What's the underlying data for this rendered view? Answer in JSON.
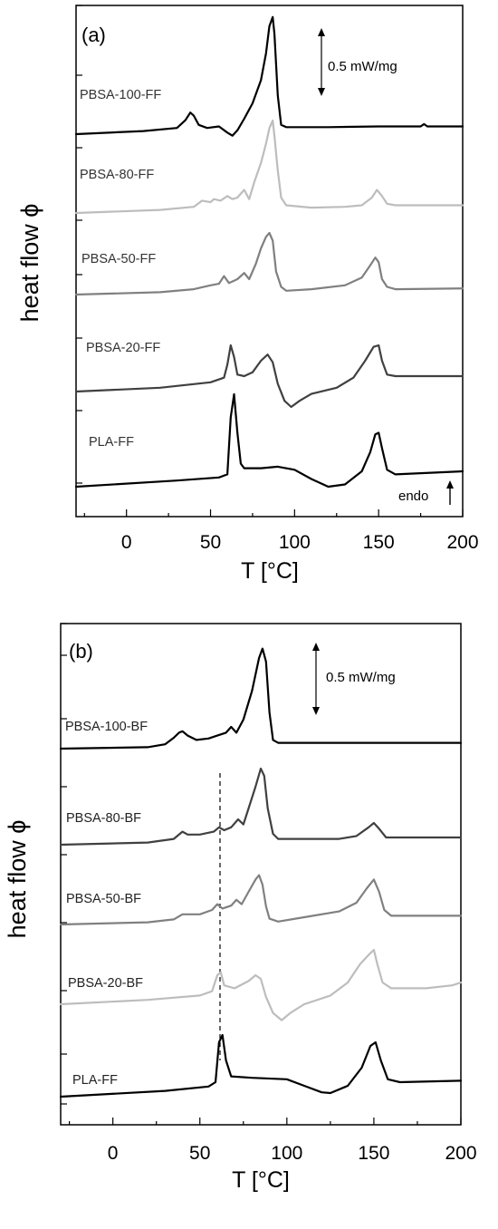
{
  "chart_data": [
    {
      "type": "line",
      "panel_label": "(a)",
      "xlabel": "T [°C]",
      "ylabel": "heat flow ϕ",
      "xlim": [
        -30,
        200
      ],
      "xticks": [
        0,
        50,
        100,
        150,
        200
      ],
      "grid": false,
      "scale_bar_label": "0.5 mW/mg",
      "direction_label": "endo",
      "series": [
        {
          "name": "PBSA-100-FF",
          "color": "#000000",
          "points": [
            [
              -30,
              0.0
            ],
            [
              10,
              0.04
            ],
            [
              30,
              0.08
            ],
            [
              35,
              0.18
            ],
            [
              38,
              0.28
            ],
            [
              40,
              0.24
            ],
            [
              43,
              0.12
            ],
            [
              48,
              0.08
            ],
            [
              55,
              0.1
            ],
            [
              60,
              0.02
            ],
            [
              63,
              -0.02
            ],
            [
              66,
              0.05
            ],
            [
              70,
              0.2
            ],
            [
              75,
              0.4
            ],
            [
              80,
              0.7
            ],
            [
              83,
              1.05
            ],
            [
              85,
              1.4
            ],
            [
              87,
              1.52
            ],
            [
              88,
              1.3
            ],
            [
              90,
              0.5
            ],
            [
              92,
              0.12
            ],
            [
              95,
              0.09
            ],
            [
              120,
              0.09
            ],
            [
              150,
              0.1
            ],
            [
              175,
              0.1
            ],
            [
              177,
              0.13
            ],
            [
              179,
              0.1
            ],
            [
              200,
              0.1
            ]
          ]
        },
        {
          "name": "PBSA-80-FF",
          "color": "#bdbdbd",
          "points": [
            [
              -30,
              0.0
            ],
            [
              20,
              0.04
            ],
            [
              40,
              0.08
            ],
            [
              45,
              0.16
            ],
            [
              50,
              0.14
            ],
            [
              52,
              0.18
            ],
            [
              56,
              0.16
            ],
            [
              60,
              0.22
            ],
            [
              63,
              0.18
            ],
            [
              66,
              0.2
            ],
            [
              70,
              0.3
            ],
            [
              73,
              0.18
            ],
            [
              76,
              0.4
            ],
            [
              80,
              0.65
            ],
            [
              83,
              0.9
            ],
            [
              85,
              1.1
            ],
            [
              87,
              1.2
            ],
            [
              88,
              1.0
            ],
            [
              90,
              0.55
            ],
            [
              92,
              0.2
            ],
            [
              95,
              0.1
            ],
            [
              110,
              0.07
            ],
            [
              130,
              0.08
            ],
            [
              140,
              0.1
            ],
            [
              146,
              0.2
            ],
            [
              149,
              0.3
            ],
            [
              152,
              0.22
            ],
            [
              155,
              0.12
            ],
            [
              160,
              0.1
            ],
            [
              200,
              0.1
            ]
          ]
        },
        {
          "name": "PBSA-50-FF",
          "color": "#808080",
          "points": [
            [
              -30,
              0.0
            ],
            [
              20,
              0.03
            ],
            [
              40,
              0.07
            ],
            [
              50,
              0.12
            ],
            [
              55,
              0.14
            ],
            [
              58,
              0.24
            ],
            [
              61,
              0.15
            ],
            [
              66,
              0.2
            ],
            [
              70,
              0.28
            ],
            [
              73,
              0.2
            ],
            [
              77,
              0.4
            ],
            [
              80,
              0.6
            ],
            [
              83,
              0.75
            ],
            [
              85,
              0.8
            ],
            [
              87,
              0.7
            ],
            [
              89,
              0.3
            ],
            [
              92,
              0.1
            ],
            [
              95,
              0.05
            ],
            [
              110,
              0.07
            ],
            [
              130,
              0.12
            ],
            [
              140,
              0.22
            ],
            [
              145,
              0.38
            ],
            [
              148,
              0.48
            ],
            [
              150,
              0.42
            ],
            [
              152,
              0.2
            ],
            [
              155,
              0.1
            ],
            [
              160,
              0.07
            ],
            [
              200,
              0.08
            ]
          ]
        },
        {
          "name": "PBSA-20-FF",
          "color": "#404040",
          "points": [
            [
              -30,
              0.0
            ],
            [
              20,
              0.05
            ],
            [
              50,
              0.12
            ],
            [
              58,
              0.18
            ],
            [
              60,
              0.35
            ],
            [
              62,
              0.6
            ],
            [
              64,
              0.45
            ],
            [
              66,
              0.22
            ],
            [
              70,
              0.2
            ],
            [
              75,
              0.25
            ],
            [
              80,
              0.4
            ],
            [
              84,
              0.48
            ],
            [
              87,
              0.38
            ],
            [
              90,
              0.1
            ],
            [
              94,
              -0.12
            ],
            [
              98,
              -0.2
            ],
            [
              103,
              -0.12
            ],
            [
              110,
              -0.03
            ],
            [
              125,
              0.05
            ],
            [
              135,
              0.18
            ],
            [
              142,
              0.4
            ],
            [
              147,
              0.58
            ],
            [
              150,
              0.6
            ],
            [
              152,
              0.4
            ],
            [
              155,
              0.22
            ],
            [
              160,
              0.2
            ],
            [
              200,
              0.2
            ]
          ]
        },
        {
          "name": "PLA-FF",
          "color": "#000000",
          "points": [
            [
              -30,
              0.0
            ],
            [
              30,
              0.08
            ],
            [
              55,
              0.12
            ],
            [
              60,
              0.16
            ],
            [
              62,
              0.9
            ],
            [
              64,
              1.2
            ],
            [
              66,
              0.7
            ],
            [
              68,
              0.3
            ],
            [
              70,
              0.24
            ],
            [
              80,
              0.24
            ],
            [
              90,
              0.26
            ],
            [
              100,
              0.22
            ],
            [
              110,
              0.1
            ],
            [
              120,
              0.0
            ],
            [
              130,
              0.03
            ],
            [
              140,
              0.2
            ],
            [
              145,
              0.45
            ],
            [
              148,
              0.68
            ],
            [
              150,
              0.7
            ],
            [
              152,
              0.5
            ],
            [
              155,
              0.22
            ],
            [
              160,
              0.16
            ],
            [
              200,
              0.2
            ]
          ]
        }
      ]
    },
    {
      "type": "line",
      "panel_label": "(b)",
      "xlabel": "T [°C]",
      "ylabel": "heat flow ϕ",
      "xlim": [
        -30,
        200
      ],
      "xticks": [
        0,
        50,
        100,
        150,
        200
      ],
      "grid": false,
      "scale_bar_label": "0.5 mW/mg",
      "series": [
        {
          "name": "PBSA-100-BF",
          "color": "#000000",
          "points": [
            [
              -30,
              0.0
            ],
            [
              20,
              0.02
            ],
            [
              30,
              0.06
            ],
            [
              35,
              0.15
            ],
            [
              38,
              0.22
            ],
            [
              40,
              0.24
            ],
            [
              43,
              0.18
            ],
            [
              48,
              0.12
            ],
            [
              55,
              0.14
            ],
            [
              60,
              0.18
            ],
            [
              65,
              0.22
            ],
            [
              68,
              0.3
            ],
            [
              71,
              0.22
            ],
            [
              75,
              0.4
            ],
            [
              80,
              0.8
            ],
            [
              84,
              1.25
            ],
            [
              86,
              1.38
            ],
            [
              88,
              1.2
            ],
            [
              90,
              0.5
            ],
            [
              92,
              0.12
            ],
            [
              95,
              0.08
            ],
            [
              150,
              0.08
            ],
            [
              200,
              0.08
            ]
          ]
        },
        {
          "name": "PBSA-80-BF",
          "color": "#404040",
          "points": [
            [
              -30,
              0.0
            ],
            [
              20,
              0.03
            ],
            [
              35,
              0.08
            ],
            [
              40,
              0.18
            ],
            [
              43,
              0.14
            ],
            [
              50,
              0.14
            ],
            [
              58,
              0.18
            ],
            [
              61,
              0.24
            ],
            [
              64,
              0.2
            ],
            [
              68,
              0.24
            ],
            [
              72,
              0.35
            ],
            [
              75,
              0.28
            ],
            [
              78,
              0.5
            ],
            [
              82,
              0.8
            ],
            [
              85,
              1.05
            ],
            [
              87,
              0.95
            ],
            [
              89,
              0.5
            ],
            [
              92,
              0.15
            ],
            [
              95,
              0.08
            ],
            [
              130,
              0.08
            ],
            [
              140,
              0.12
            ],
            [
              147,
              0.24
            ],
            [
              150,
              0.3
            ],
            [
              153,
              0.22
            ],
            [
              157,
              0.1
            ],
            [
              200,
              0.1
            ]
          ]
        },
        {
          "name": "PBSA-50-BF",
          "color": "#808080",
          "points": [
            [
              -30,
              0.0
            ],
            [
              20,
              0.03
            ],
            [
              35,
              0.07
            ],
            [
              40,
              0.14
            ],
            [
              50,
              0.14
            ],
            [
              57,
              0.2
            ],
            [
              60,
              0.28
            ],
            [
              63,
              0.22
            ],
            [
              68,
              0.26
            ],
            [
              71,
              0.34
            ],
            [
              74,
              0.28
            ],
            [
              78,
              0.45
            ],
            [
              82,
              0.62
            ],
            [
              84,
              0.68
            ],
            [
              86,
              0.55
            ],
            [
              88,
              0.25
            ],
            [
              90,
              0.08
            ],
            [
              95,
              0.04
            ],
            [
              110,
              0.1
            ],
            [
              130,
              0.18
            ],
            [
              140,
              0.3
            ],
            [
              146,
              0.5
            ],
            [
              150,
              0.62
            ],
            [
              153,
              0.45
            ],
            [
              156,
              0.2
            ],
            [
              160,
              0.12
            ],
            [
              200,
              0.12
            ]
          ]
        },
        {
          "name": "PBSA-20-BF",
          "color": "#bdbdbd",
          "points": [
            [
              -30,
              0.0
            ],
            [
              20,
              0.06
            ],
            [
              50,
              0.12
            ],
            [
              57,
              0.18
            ],
            [
              60,
              0.4
            ],
            [
              62,
              0.44
            ],
            [
              64,
              0.26
            ],
            [
              70,
              0.22
            ],
            [
              78,
              0.32
            ],
            [
              82,
              0.4
            ],
            [
              85,
              0.35
            ],
            [
              88,
              0.1
            ],
            [
              92,
              -0.12
            ],
            [
              97,
              -0.22
            ],
            [
              102,
              -0.12
            ],
            [
              110,
              0.0
            ],
            [
              125,
              0.12
            ],
            [
              135,
              0.3
            ],
            [
              142,
              0.55
            ],
            [
              147,
              0.68
            ],
            [
              150,
              0.75
            ],
            [
              152,
              0.55
            ],
            [
              155,
              0.3
            ],
            [
              160,
              0.22
            ],
            [
              180,
              0.22
            ],
            [
              195,
              0.26
            ],
            [
              200,
              0.3
            ]
          ]
        },
        {
          "name": "PLA-FF",
          "color": "#000000",
          "points": [
            [
              -30,
              0.0
            ],
            [
              30,
              0.08
            ],
            [
              55,
              0.14
            ],
            [
              59,
              0.2
            ],
            [
              61,
              0.75
            ],
            [
              63,
              0.85
            ],
            [
              65,
              0.5
            ],
            [
              68,
              0.28
            ],
            [
              80,
              0.26
            ],
            [
              100,
              0.24
            ],
            [
              110,
              0.15
            ],
            [
              120,
              0.06
            ],
            [
              125,
              0.05
            ],
            [
              135,
              0.15
            ],
            [
              143,
              0.4
            ],
            [
              148,
              0.7
            ],
            [
              151,
              0.75
            ],
            [
              154,
              0.5
            ],
            [
              158,
              0.24
            ],
            [
              165,
              0.2
            ],
            [
              200,
              0.22
            ]
          ]
        }
      ]
    }
  ]
}
